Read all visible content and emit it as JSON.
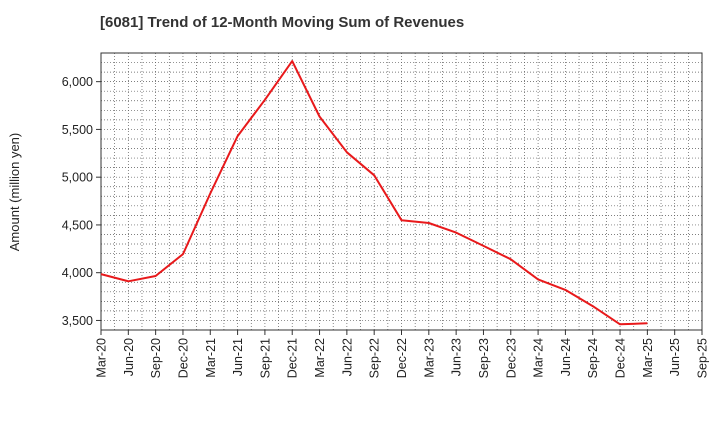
{
  "chart_data": {
    "type": "line",
    "title": "[6081]  Trend of 12-Month Moving Sum of Revenues",
    "xlabel": "",
    "ylabel": "Amount (million yen)",
    "ylim": [
      3400,
      6300
    ],
    "y_ticks": [
      3500,
      4000,
      4500,
      5000,
      5500,
      6000
    ],
    "y_tick_labels": [
      "3,500",
      "4,000",
      "4,500",
      "5,000",
      "5,500",
      "6,000"
    ],
    "categories": [
      "Mar-20",
      "Jun-20",
      "Sep-20",
      "Dec-20",
      "Mar-21",
      "Jun-21",
      "Sep-21",
      "Dec-21",
      "Mar-22",
      "Jun-22",
      "Sep-22",
      "Dec-22",
      "Mar-23",
      "Jun-23",
      "Sep-23",
      "Dec-23",
      "Mar-24",
      "Jun-24",
      "Sep-24",
      "Dec-24",
      "Mar-25",
      "Jun-25",
      "Sep-25"
    ],
    "grid": true,
    "series": [
      {
        "color": "#e8191b",
        "values": [
          3985,
          3910,
          3965,
          4195,
          4830,
          5430,
          5810,
          6215,
          5635,
          5260,
          5020,
          4550,
          4520,
          4420,
          4280,
          4140,
          3930,
          3820,
          3650,
          3460,
          3470,
          null,
          null
        ]
      }
    ]
  }
}
